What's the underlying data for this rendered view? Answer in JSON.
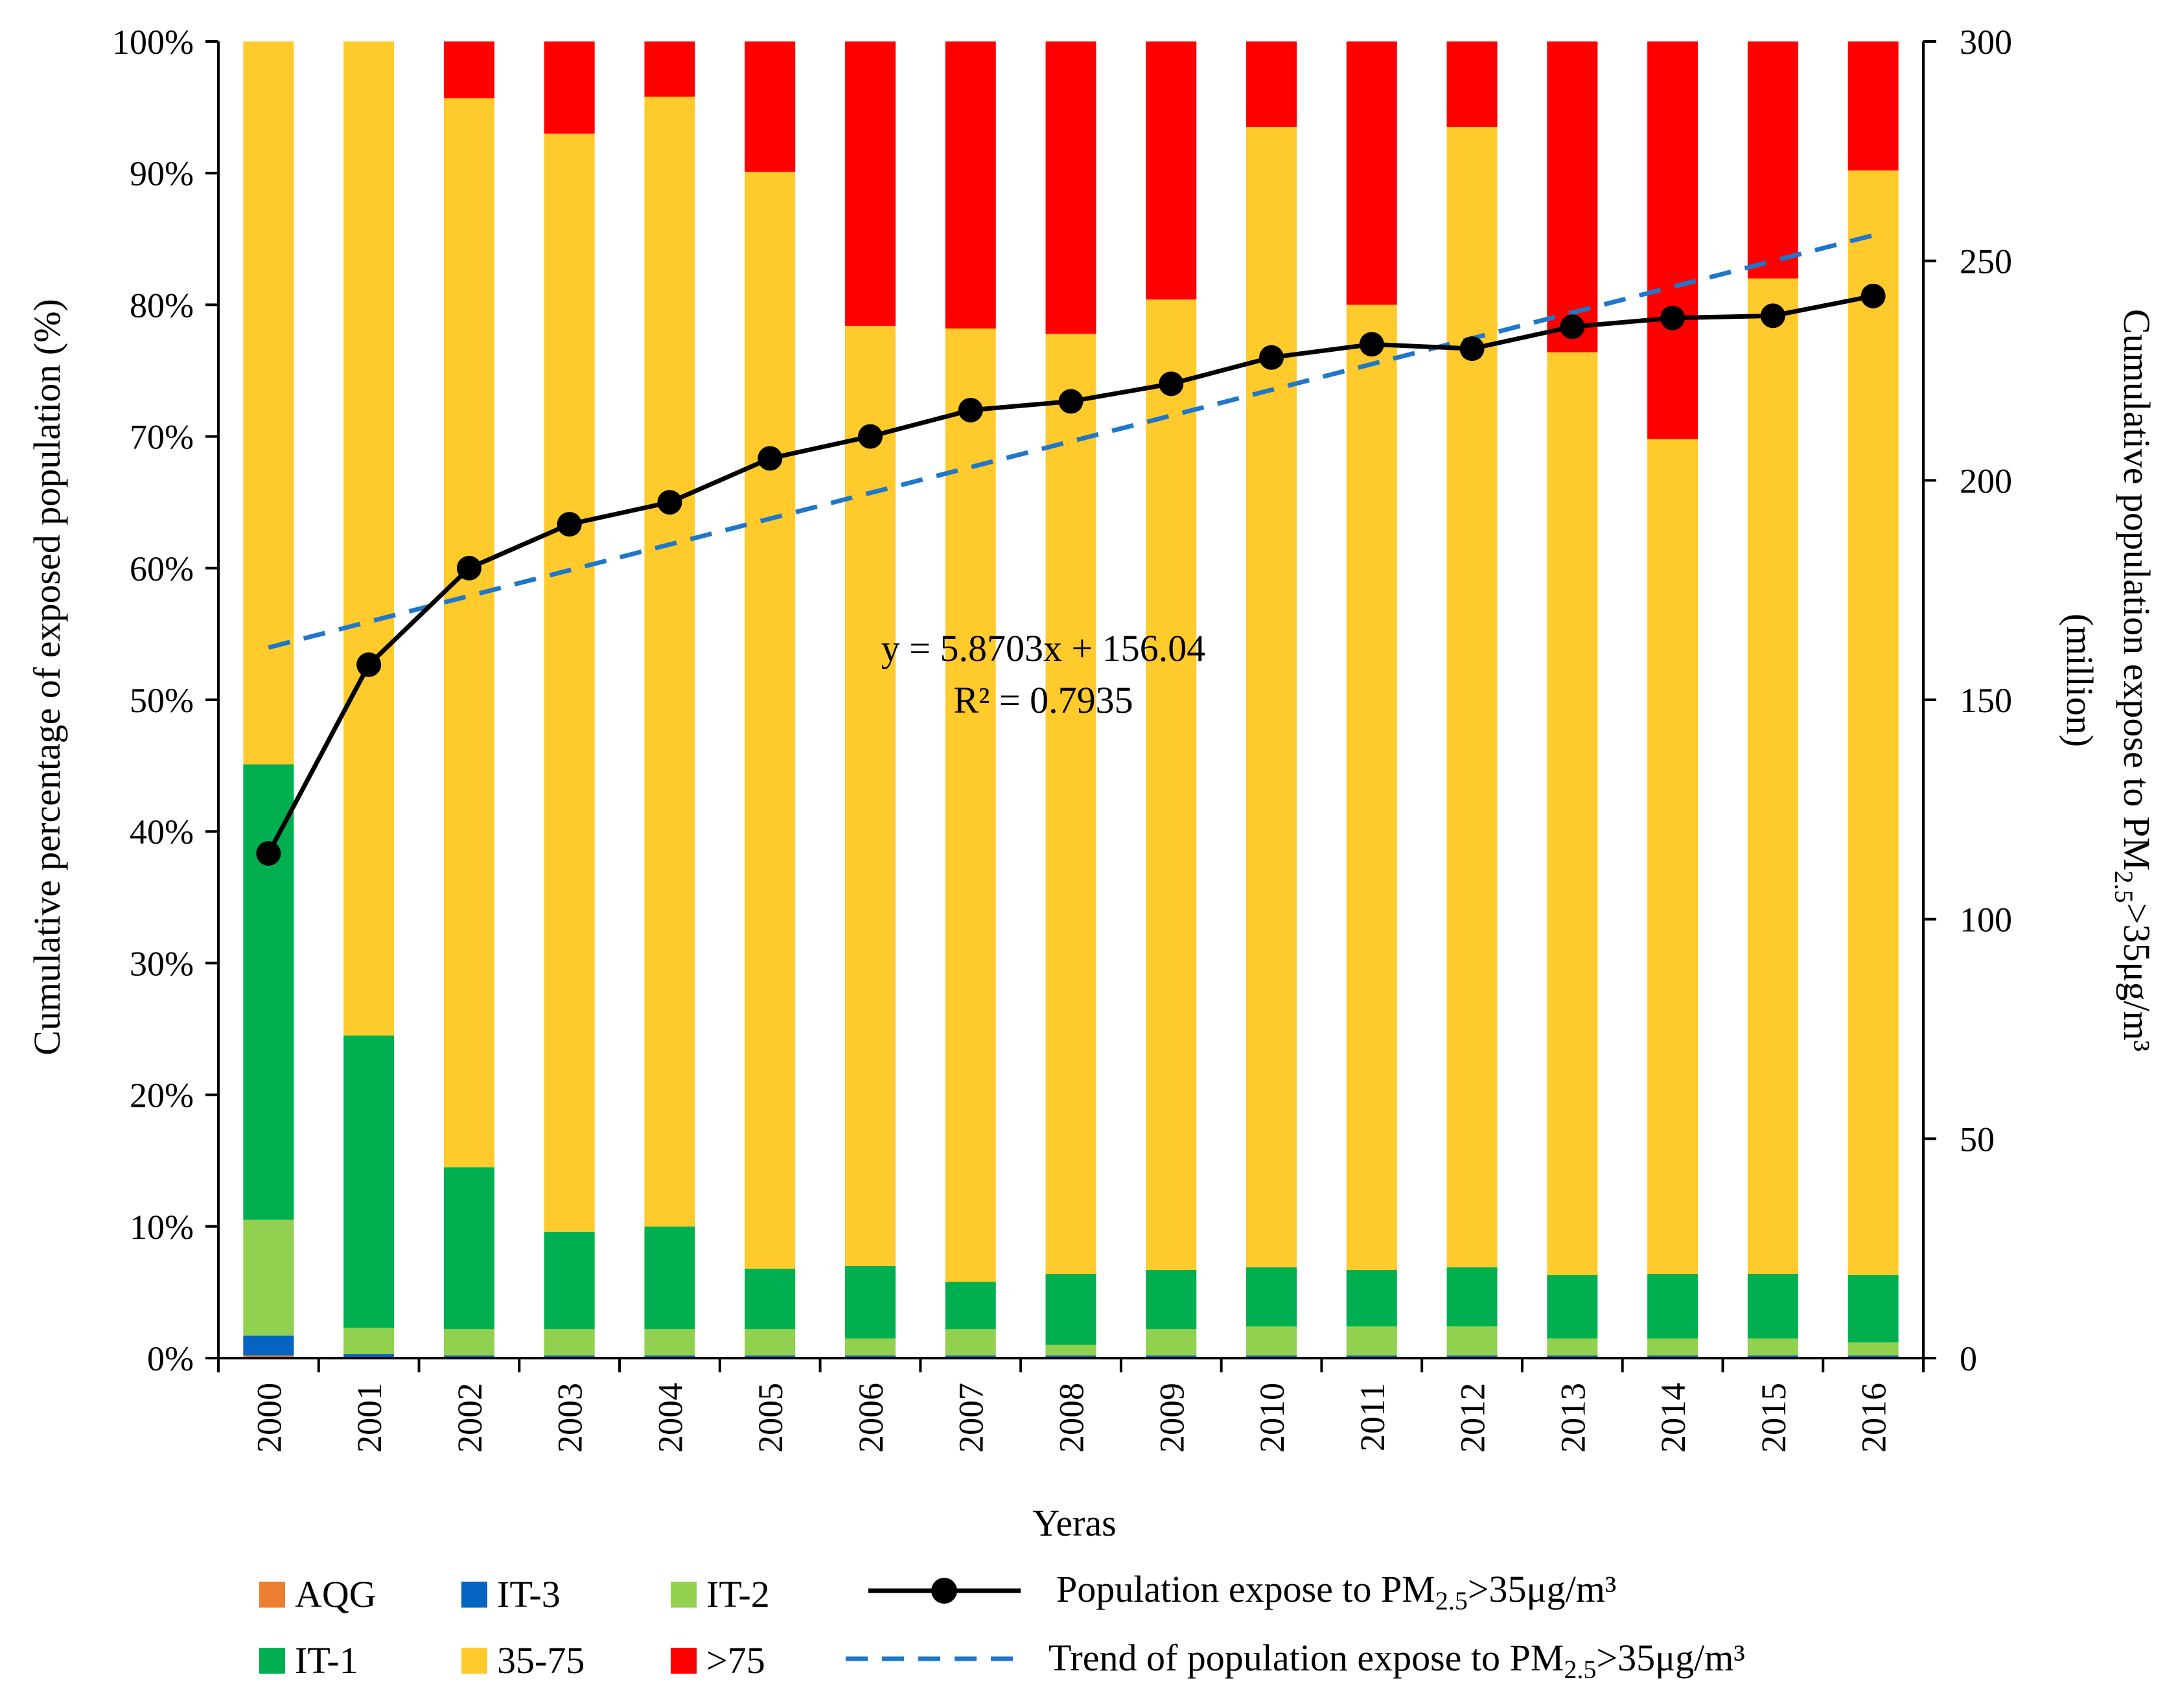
{
  "chart_data": {
    "type": "bar",
    "stacked": true,
    "categories": [
      "2000",
      "2001",
      "2002",
      "2003",
      "2004",
      "2005",
      "2006",
      "2007",
      "2008",
      "2009",
      "2010",
      "2011",
      "2012",
      "2013",
      "2014",
      "2015",
      "2016"
    ],
    "series": [
      {
        "name": "AQG",
        "color": "#ED7D31",
        "values": [
          0.2,
          0,
          0,
          0,
          0,
          0,
          0,
          0,
          0,
          0,
          0,
          0,
          0,
          0,
          0,
          0,
          0
        ]
      },
      {
        "name": "IT-3",
        "color": "#0563C1",
        "values": [
          1.5,
          0.3,
          0.2,
          0.2,
          0.2,
          0.2,
          0.2,
          0.2,
          0.2,
          0.2,
          0.2,
          0.2,
          0.2,
          0.2,
          0.2,
          0.2,
          0.2
        ]
      },
      {
        "name": "IT-2",
        "color": "#92D050",
        "values": [
          8.8,
          2.0,
          2.0,
          2.0,
          2.0,
          2.0,
          1.3,
          2.0,
          0.8,
          2.0,
          2.2,
          2.2,
          2.2,
          1.3,
          1.3,
          1.3,
          1.0
        ]
      },
      {
        "name": "IT-1",
        "color": "#00B050",
        "values": [
          34.6,
          22.2,
          12.3,
          7.4,
          7.8,
          4.6,
          5.5,
          3.6,
          5.4,
          4.5,
          4.5,
          4.3,
          4.5,
          4.8,
          4.9,
          4.9,
          5.1
        ]
      },
      {
        "name": "35-75",
        "color": "#FFCA2C",
        "values": [
          54.9,
          75.5,
          81.2,
          83.4,
          85.8,
          83.3,
          71.4,
          72.4,
          71.4,
          73.7,
          86.6,
          73.3,
          86.6,
          70.1,
          63.4,
          75.6,
          83.9
        ]
      },
      {
        "name": ">75",
        "color": "#FF0000",
        "values": [
          0,
          0,
          4.3,
          7.0,
          4.2,
          9.9,
          21.6,
          21.8,
          22.2,
          19.6,
          6.5,
          20.0,
          6.5,
          23.6,
          30.2,
          18.0,
          9.8
        ]
      }
    ],
    "line_series": {
      "name": "Population expose to PM2.5>35μg/m³",
      "axis": "right",
      "values": [
        115,
        158,
        180,
        190,
        195,
        205,
        210,
        216,
        218,
        222,
        228,
        231,
        230,
        235,
        237,
        237.5,
        242
      ]
    },
    "trend": {
      "name": "Trend of population expose to PM2.5>35μg/m³",
      "axis": "right",
      "slope": 5.8703,
      "intercept": 156.04
    },
    "title": "",
    "xlabel": "Yeras",
    "ylabel_left": "Cumulative percentage of exposed population (%)",
    "ylabel_right_main": "Cumulative population expose to PM",
    "ylabel_right_sub": "2.5",
    "ylabel_right_tail": ">35μg/m³",
    "ylabel_right_line2": "(million)",
    "ylim_left": [
      0,
      100
    ],
    "ylim_right": [
      0,
      300
    ],
    "left_ticks": [
      "0%",
      "10%",
      "20%",
      "30%",
      "40%",
      "50%",
      "60%",
      "70%",
      "80%",
      "90%",
      "100%"
    ],
    "right_ticks": [
      "0",
      "50",
      "100",
      "150",
      "200",
      "250",
      "300"
    ],
    "equation": "y = 5.8703x + 156.04",
    "r_squared": "R² = 0.7935",
    "legend": {
      "row1": [
        "AQG",
        "IT-3",
        "IT-2"
      ],
      "row2": [
        "IT-1",
        "35-75",
        ">75"
      ],
      "line_label_main": "Population expose to PM",
      "line_label_sub": "2.5",
      "line_label_tail": ">35μg/m³",
      "trend_label_main": "Trend of population expose to PM",
      "trend_label_sub": "2.5",
      "trend_label_tail": ">35μg/m³"
    },
    "line_color": "#000000",
    "trend_color": "#1F77C9",
    "grid": false
  }
}
